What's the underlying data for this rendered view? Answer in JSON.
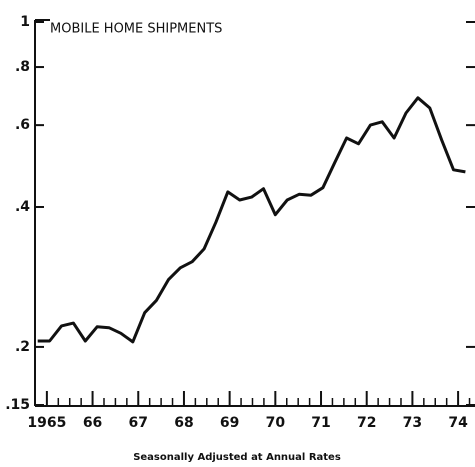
{
  "chart_data": {
    "type": "line",
    "title": "MOBILE HOME SHIPMENTS",
    "caption": "Seasonally Adjusted at Annual Rates",
    "x": [
      1964.8,
      1965.06,
      1965.32,
      1965.58,
      1965.84,
      1966.1,
      1966.36,
      1966.62,
      1966.88,
      1967.14,
      1967.4,
      1967.66,
      1967.92,
      1968.18,
      1968.44,
      1968.7,
      1968.96,
      1969.22,
      1969.48,
      1969.74,
      1970,
      1970.26,
      1970.52,
      1970.78,
      1971.04,
      1971.3,
      1971.56,
      1971.82,
      1972.08,
      1972.34,
      1972.6,
      1972.86,
      1973.12,
      1973.38,
      1973.64,
      1973.9,
      1974.16
    ],
    "series": [
      {
        "color": "#111111",
        "values": [
          0.206,
          0.206,
          0.222,
          0.225,
          0.206,
          0.221,
          0.22,
          0.214,
          0.205,
          0.237,
          0.252,
          0.279,
          0.296,
          0.305,
          0.325,
          0.371,
          0.431,
          0.414,
          0.42,
          0.438,
          0.385,
          0.414,
          0.426,
          0.424,
          0.44,
          0.498,
          0.563,
          0.547,
          0.6,
          0.61,
          0.563,
          0.637,
          0.687,
          0.653,
          0.558,
          0.481,
          0.476
        ]
      }
    ],
    "xlim": [
      1964.74,
      1974.37
    ],
    "xticks": [
      1965,
      {
        "value": 1966,
        "label": "66"
      },
      {
        "value": 1967,
        "label": "67"
      },
      {
        "value": 1968,
        "label": "68"
      },
      {
        "value": 1969,
        "label": "69"
      },
      {
        "value": 1970,
        "label": "70"
      },
      {
        "value": 1971,
        "label": "71"
      },
      {
        "value": 1972,
        "label": "72"
      },
      {
        "value": 1973,
        "label": "73"
      },
      {
        "value": 1974,
        "label": "74"
      }
    ],
    "ylim": [
      0.15,
      1
    ],
    "yticks": [
      {
        "value": 0.15,
        "label": ".15"
      },
      {
        "value": 0.2,
        "label": ".2"
      },
      {
        "value": 0.4,
        "label": ".4"
      },
      {
        "value": 0.6,
        "label": ".6"
      },
      {
        "value": 0.8,
        "label": ".8"
      },
      1
    ],
    "log_y": true
  }
}
